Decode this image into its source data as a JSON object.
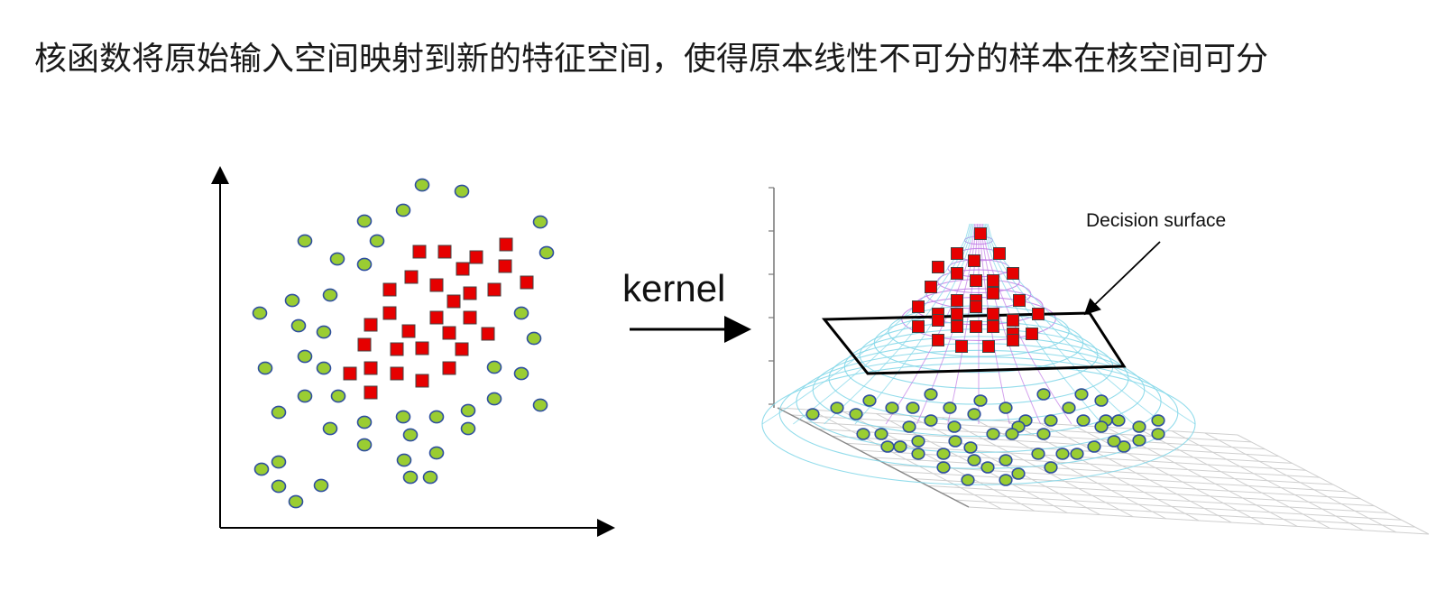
{
  "headline": "核函数将原始输入空间映射到新的特征空间，使得原本线性不可分的样本在核空间可分",
  "arrow_label": "kernel",
  "surface_label": "Decision surface",
  "colors": {
    "circle_fill": "#9acd32",
    "circle_stroke": "#2f4f9f",
    "square_fill": "#e60000",
    "square_stroke": "#444444",
    "axis": "#000000",
    "mesh_cyan": "#7fd6e8",
    "mesh_purple": "#c07ae6"
  },
  "legend_icons": {
    "class_a": "green-circle",
    "class_b": "red-square"
  }
}
